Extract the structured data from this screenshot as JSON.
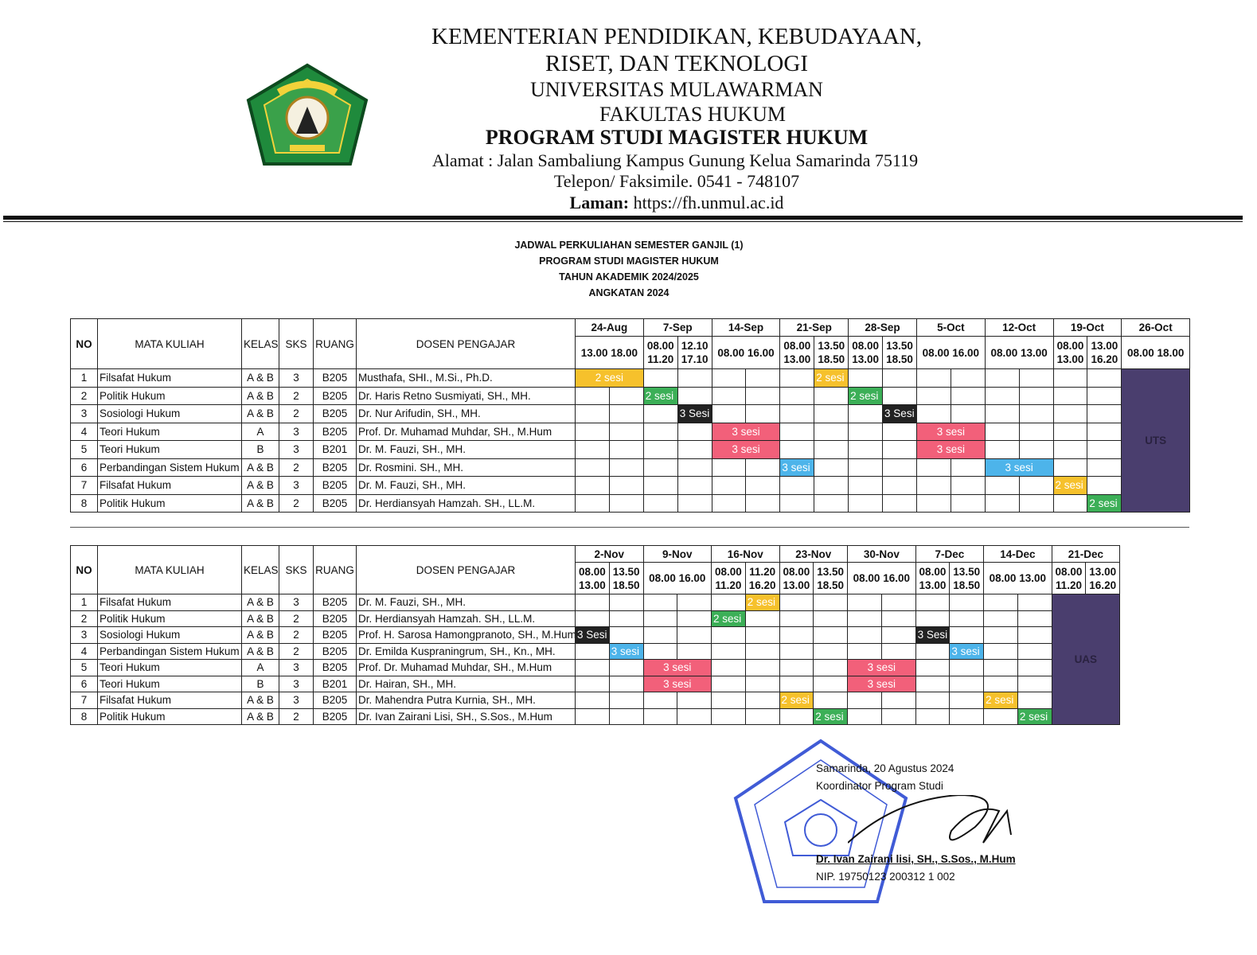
{
  "letterhead": {
    "lines": [
      "KEMENTERIAN PENDIDIKAN, KEBUDAYAAN,",
      "RISET, DAN TEKNOLOGI",
      "UNIVERSITAS MULAWARMAN",
      "FAKULTAS HUKUM",
      "PROGRAM STUDI MAGISTER HUKUM"
    ],
    "address": "Alamat : Jalan Sambaliung Kampus Gunung Kelua Samarinda 75119",
    "phone": "Telepon/ Faksimile. 0541 - 748107",
    "web_label": "Laman:",
    "web": "https://fh.unmul.ac.id",
    "logo_text": [
      "UNIVERSITAS",
      "MULAWARMAN"
    ]
  },
  "title": [
    "JADWAL PERKULIAHAN SEMESTER GANJIL (1)",
    "PROGRAM STUDI MAGISTER HUKUM",
    "TAHUN AKADEMIK 2024/2025",
    "ANGKATAN 2024"
  ],
  "columns": [
    "NO",
    "MATA KULIAH",
    "KELAS",
    "SKS",
    "RUANG",
    "DOSEN PENGAJAR"
  ],
  "colors": {
    "yellow": "#f6c12c",
    "green": "#3caf57",
    "black": "#222222",
    "red": "#f2607a",
    "blue": "#4db4ea",
    "exam": "#4a3e6e"
  },
  "schedules": [
    {
      "dates": [
        "24-Aug",
        "7-Sep",
        "14-Sep",
        "21-Sep",
        "28-Sep",
        "5-Oct",
        "12-Oct",
        "19-Oct",
        "26-Oct"
      ],
      "times": [
        [
          "13.00 18.00"
        ],
        [
          [
            "08.00",
            "11.20"
          ],
          [
            "12.10",
            "17.10"
          ]
        ],
        [
          "08.00 16.00"
        ],
        [
          [
            "08.00",
            "13.00"
          ],
          [
            "13.50",
            "18.50"
          ]
        ],
        [
          [
            "08.00",
            "13.00"
          ],
          [
            "13.50",
            "18.50"
          ]
        ],
        [
          "08.00 16.00"
        ],
        [
          "08.00 13.00"
        ],
        [
          [
            "08.00",
            "13.00"
          ],
          [
            "13.00",
            "16.20"
          ]
        ],
        [
          "08.00 18.00"
        ]
      ],
      "exam_label": "UTS",
      "rows": [
        {
          "no": "1",
          "mk": "Filsafat Hukum",
          "kelas": "A & B",
          "sks": "3",
          "ruang": "B205",
          "dosen": "Musthafa, SHI., M.Si., Ph.D.",
          "blocks": [
            {
              "col": 0,
              "span": 2,
              "label": "2 sesi",
              "color": "yellow"
            },
            {
              "col": 7,
              "span": 1,
              "label": "2 sesi",
              "color": "yellow"
            }
          ]
        },
        {
          "no": "2",
          "mk": "Politik Hukum",
          "kelas": "A & B",
          "sks": "2",
          "ruang": "B205",
          "dosen": "Dr. Haris Retno Susmiyati, SH., MH.",
          "blocks": [
            {
              "col": 2,
              "span": 1,
              "label": "2 sesi",
              "color": "green"
            },
            {
              "col": 8,
              "span": 1,
              "label": "2 sesi",
              "color": "green"
            }
          ]
        },
        {
          "no": "3",
          "mk": "Sosiologi Hukum",
          "kelas": "A & B",
          "sks": "2",
          "ruang": "B205",
          "dosen": "Dr. Nur Arifudin, SH., MH.",
          "blocks": [
            {
              "col": 3,
              "span": 1,
              "label": "3 Sesi",
              "color": "black"
            },
            {
              "col": 9,
              "span": 1,
              "label": "3 Sesi",
              "color": "black"
            }
          ]
        },
        {
          "no": "4",
          "mk": "Teori Hukum",
          "kelas": "A",
          "sks": "3",
          "ruang": "B205",
          "dosen": "Prof. Dr. Muhamad Muhdar, SH., M.Hum",
          "blocks": [
            {
              "col": 4,
              "span": 2,
              "label": "3 sesi",
              "color": "red"
            },
            {
              "col": 10,
              "span": 2,
              "label": "3 sesi",
              "color": "red"
            }
          ]
        },
        {
          "no": "5",
          "mk": "Teori Hukum",
          "kelas": "B",
          "sks": "3",
          "ruang": "B201",
          "dosen": "Dr. M. Fauzi, SH., MH.",
          "blocks": [
            {
              "col": 4,
              "span": 2,
              "label": "3 sesi",
              "color": "red"
            },
            {
              "col": 10,
              "span": 2,
              "label": "3 sesi",
              "color": "red"
            }
          ]
        },
        {
          "no": "6",
          "mk": "Perbandingan Sistem Hukum",
          "kelas": "A & B",
          "sks": "2",
          "ruang": "B205",
          "dosen": "Dr. Rosmini. SH., MH.",
          "blocks": [
            {
              "col": 6,
              "span": 1,
              "label": "3 sesi",
              "color": "blue"
            },
            {
              "col": 12,
              "span": 2,
              "label": "3 sesi",
              "color": "blue"
            }
          ]
        },
        {
          "no": "7",
          "mk": "Filsafat Hukum",
          "kelas": "A & B",
          "sks": "3",
          "ruang": "B205",
          "dosen": "Dr. M. Fauzi, SH., MH.",
          "blocks": [
            {
              "col": 14,
              "span": 1,
              "label": "2 sesi",
              "color": "yellow"
            }
          ]
        },
        {
          "no": "8",
          "mk": "Politik Hukum",
          "kelas": "A & B",
          "sks": "2",
          "ruang": "B205",
          "dosen": "Dr. Herdiansyah Hamzah. SH., LL.M.",
          "blocks": [
            {
              "col": 15,
              "span": 1,
              "label": "2 sesi",
              "color": "green"
            }
          ]
        }
      ]
    },
    {
      "dates": [
        "2-Nov",
        "9-Nov",
        "16-Nov",
        "23-Nov",
        "30-Nov",
        "7-Dec",
        "14-Dec",
        "21-Dec"
      ],
      "times": [
        [
          [
            "08.00",
            "13.00"
          ],
          [
            "13.50",
            "18.50"
          ]
        ],
        [
          "08.00 16.00"
        ],
        [
          [
            "08.00",
            "11.20"
          ],
          [
            "11.20",
            "16.20"
          ]
        ],
        [
          [
            "08.00",
            "13.00"
          ],
          [
            "13.50",
            "18.50"
          ]
        ],
        [
          "08.00 16.00"
        ],
        [
          [
            "08.00",
            "13.00"
          ],
          [
            "13.50",
            "18.50"
          ]
        ],
        [
          "08.00 13.00"
        ],
        [
          [
            "08.00",
            "11.20"
          ],
          [
            "13.00",
            "16.20"
          ]
        ]
      ],
      "exam_label": "UAS",
      "rows": [
        {
          "no": "1",
          "mk": "Filsafat Hukum",
          "kelas": "A & B",
          "sks": "3",
          "ruang": "B205",
          "dosen": "Dr. M. Fauzi, SH., MH.",
          "blocks": [
            {
              "col": 5,
              "span": 1,
              "label": "2 sesi",
              "color": "yellow"
            }
          ]
        },
        {
          "no": "2",
          "mk": "Politik Hukum",
          "kelas": "A & B",
          "sks": "2",
          "ruang": "B205",
          "dosen": "Dr. Herdiansyah Hamzah. SH., LL.M.",
          "blocks": [
            {
              "col": 4,
              "span": 1,
              "label": "2 sesi",
              "color": "green"
            }
          ]
        },
        {
          "no": "3",
          "mk": "Sosiologi Hukum",
          "kelas": "A & B",
          "sks": "2",
          "ruang": "B205",
          "dosen": "Prof. H. Sarosa Hamongpranoto, SH., M.Hum",
          "blocks": [
            {
              "col": 0,
              "span": 1,
              "label": "3 Sesi",
              "color": "black"
            },
            {
              "col": 10,
              "span": 1,
              "label": "3 Sesi",
              "color": "black"
            }
          ]
        },
        {
          "no": "4",
          "mk": "Perbandingan Sistem Hukum",
          "kelas": "A & B",
          "sks": "2",
          "ruang": "B205",
          "dosen": "Dr. Emilda Kuspraningrum, SH., Kn., MH.",
          "blocks": [
            {
              "col": 1,
              "span": 1,
              "label": "3 sesi",
              "color": "blue"
            },
            {
              "col": 11,
              "span": 1,
              "label": "3 sesi",
              "color": "blue"
            }
          ]
        },
        {
          "no": "5",
          "mk": "Teori Hukum",
          "kelas": "A",
          "sks": "3",
          "ruang": "B205",
          "dosen": "Prof. Dr. Muhamad Muhdar, SH., M.Hum",
          "blocks": [
            {
              "col": 2,
              "span": 2,
              "label": "3 sesi",
              "color": "red"
            },
            {
              "col": 8,
              "span": 2,
              "label": "3 sesi",
              "color": "red"
            }
          ]
        },
        {
          "no": "6",
          "mk": "Teori Hukum",
          "kelas": "B",
          "sks": "3",
          "ruang": "B201",
          "dosen": "Dr. Hairan, SH., MH.",
          "blocks": [
            {
              "col": 2,
              "span": 2,
              "label": "3 sesi",
              "color": "red"
            },
            {
              "col": 8,
              "span": 2,
              "label": "3 sesi",
              "color": "red"
            }
          ]
        },
        {
          "no": "7",
          "mk": "Filsafat Hukum",
          "kelas": "A & B",
          "sks": "3",
          "ruang": "B205",
          "dosen": "Dr. Mahendra Putra Kurnia, SH., MH.",
          "blocks": [
            {
              "col": 6,
              "span": 1,
              "label": "2 sesi",
              "color": "yellow"
            },
            {
              "col": 12,
              "span": 1,
              "label": "2 sesi",
              "color": "yellow"
            }
          ]
        },
        {
          "no": "8",
          "mk": "Politik Hukum",
          "kelas": "A & B",
          "sks": "2",
          "ruang": "B205",
          "dosen": "Dr. Ivan Zairani Lisi, SH., S.Sos., M.Hum",
          "blocks": [
            {
              "col": 7,
              "span": 1,
              "label": "2 sesi",
              "color": "green"
            },
            {
              "col": 13,
              "span": 1,
              "label": "2 sesi",
              "color": "green"
            }
          ]
        }
      ]
    }
  ],
  "signature": {
    "place_date": "Samarinda, 20 Agustus 2024",
    "role": "Koordinator Program Studi",
    "name": "Dr. Ivan Zairani lisi, SH., S.Sos., M.Hum",
    "nip": "NIP. 19750123 200312 1 002",
    "stamp_text": [
      "KEMENTERIAN PENDIDIKAN, KEBUDAYAAN, RISET, DAN TEKNOLOGI",
      "UNIVERSITAS MULAWARMAN",
      "FAKULTAS HUKUM"
    ]
  }
}
